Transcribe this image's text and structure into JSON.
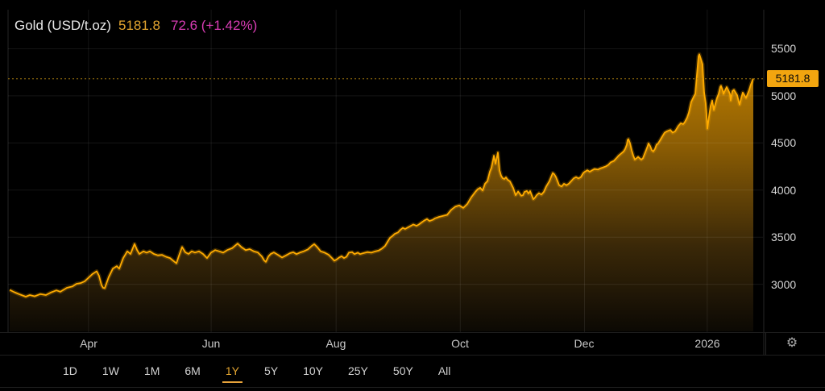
{
  "header": {
    "title": "Gold (USD/t.oz)",
    "price": "5181.8",
    "change": "72.6 (+1.42%)"
  },
  "settings_icon": "⚙",
  "range_selector": {
    "options": [
      "1D",
      "1W",
      "1M",
      "6M",
      "1Y",
      "5Y",
      "10Y",
      "25Y",
      "50Y",
      "All"
    ],
    "active": "1Y"
  },
  "colors": {
    "background": "#000000",
    "line": "#ffab00",
    "line_glow": "rgba(255,171,0,0.22)",
    "fill_top": "#c68400",
    "fill_mid": "#8a5c04",
    "fill_low": "#3a2808",
    "fill_bottom": "#0c0904",
    "grid": "rgba(255,255,255,0.08)",
    "border": "rgba(255,255,255,0.15)",
    "dotted_price_line": "#a87c10",
    "badge_bg": "#f2a50f",
    "badge_text": "#0a0a0a",
    "header_price": "#e3a530",
    "header_change": "#d83cb4",
    "axis_text": "#d6d6d6"
  },
  "chart_data": {
    "type": "area",
    "title": "Gold (USD/t.oz)",
    "current_price": 5181.8,
    "current_price_label": "5181.8",
    "change": 72.6,
    "change_percent": "+1.42%",
    "x_range": [
      "Feb 2025",
      "Feb 2026"
    ],
    "x_unit": "fraction of visible 1Y range",
    "ylim": [
      2500,
      5915
    ],
    "grid": true,
    "legend_position": "none",
    "x_ticks": [
      {
        "label": "Apr",
        "pos": 0.106
      },
      {
        "label": "Jun",
        "pos": 0.271
      },
      {
        "label": "Aug",
        "pos": 0.439
      },
      {
        "label": "Oct",
        "pos": 0.606
      },
      {
        "label": "Dec",
        "pos": 0.773
      },
      {
        "label": "2026",
        "pos": 0.938
      }
    ],
    "y_ticks": [
      5500,
      5000,
      4500,
      4000,
      3500,
      3000
    ],
    "points": [
      [
        0.0,
        2940
      ],
      [
        0.0065,
        2915
      ],
      [
        0.0141,
        2890
      ],
      [
        0.0217,
        2868
      ],
      [
        0.0271,
        2885
      ],
      [
        0.0336,
        2872
      ],
      [
        0.0412,
        2895
      ],
      [
        0.0487,
        2885
      ],
      [
        0.0552,
        2912
      ],
      [
        0.0628,
        2935
      ],
      [
        0.0682,
        2920
      ],
      [
        0.0769,
        2962
      ],
      [
        0.0845,
        2978
      ],
      [
        0.0899,
        3005
      ],
      [
        0.0953,
        3012
      ],
      [
        0.1007,
        3030
      ],
      [
        0.1062,
        3070
      ],
      [
        0.1116,
        3110
      ],
      [
        0.117,
        3138
      ],
      [
        0.1202,
        3090
      ],
      [
        0.1235,
        2990
      ],
      [
        0.1257,
        2962
      ],
      [
        0.1278,
        2958
      ],
      [
        0.1332,
        3075
      ],
      [
        0.1387,
        3165
      ],
      [
        0.1441,
        3192
      ],
      [
        0.1473,
        3165
      ],
      [
        0.1527,
        3277
      ],
      [
        0.1582,
        3350
      ],
      [
        0.1625,
        3322
      ],
      [
        0.1679,
        3428
      ],
      [
        0.1712,
        3365
      ],
      [
        0.1744,
        3322
      ],
      [
        0.1798,
        3350
      ],
      [
        0.1842,
        3335
      ],
      [
        0.1885,
        3350
      ],
      [
        0.1939,
        3322
      ],
      [
        0.1993,
        3307
      ],
      [
        0.2048,
        3312
      ],
      [
        0.2102,
        3292
      ],
      [
        0.2156,
        3278
      ],
      [
        0.2199,
        3250
      ],
      [
        0.2243,
        3222
      ],
      [
        0.2275,
        3300
      ],
      [
        0.2318,
        3395
      ],
      [
        0.2362,
        3340
      ],
      [
        0.2405,
        3322
      ],
      [
        0.2448,
        3350
      ],
      [
        0.2492,
        3336
      ],
      [
        0.2546,
        3350
      ],
      [
        0.26,
        3322
      ],
      [
        0.2654,
        3278
      ],
      [
        0.2708,
        3335
      ],
      [
        0.2763,
        3363
      ],
      [
        0.2817,
        3350
      ],
      [
        0.2871,
        3335
      ],
      [
        0.2925,
        3363
      ],
      [
        0.299,
        3382
      ],
      [
        0.3066,
        3432
      ],
      [
        0.312,
        3392
      ],
      [
        0.3174,
        3363
      ],
      [
        0.3228,
        3373
      ],
      [
        0.3283,
        3350
      ],
      [
        0.3337,
        3338
      ],
      [
        0.3391,
        3295
      ],
      [
        0.3424,
        3252
      ],
      [
        0.3445,
        3238
      ],
      [
        0.3479,
        3295
      ],
      [
        0.351,
        3322
      ],
      [
        0.3554,
        3338
      ],
      [
        0.3608,
        3312
      ],
      [
        0.3662,
        3284
      ],
      [
        0.3716,
        3306
      ],
      [
        0.377,
        3330
      ],
      [
        0.3814,
        3340
      ],
      [
        0.3857,
        3320
      ],
      [
        0.39,
        3335
      ],
      [
        0.3954,
        3350
      ],
      [
        0.4009,
        3370
      ],
      [
        0.4063,
        3407
      ],
      [
        0.4095,
        3426
      ],
      [
        0.4139,
        3392
      ],
      [
        0.4182,
        3350
      ],
      [
        0.4236,
        3335
      ],
      [
        0.429,
        3312
      ],
      [
        0.4334,
        3278
      ],
      [
        0.4366,
        3250
      ],
      [
        0.4399,
        3264
      ],
      [
        0.4431,
        3284
      ],
      [
        0.4464,
        3298
      ],
      [
        0.4496,
        3278
      ],
      [
        0.4529,
        3292
      ],
      [
        0.4561,
        3335
      ],
      [
        0.4605,
        3341
      ],
      [
        0.4637,
        3320
      ],
      [
        0.468,
        3335
      ],
      [
        0.4713,
        3320
      ],
      [
        0.4756,
        3330
      ],
      [
        0.481,
        3341
      ],
      [
        0.4864,
        3335
      ],
      [
        0.4919,
        3350
      ],
      [
        0.4962,
        3358
      ],
      [
        0.5005,
        3378
      ],
      [
        0.5049,
        3407
      ],
      [
        0.5081,
        3450
      ],
      [
        0.5114,
        3492
      ],
      [
        0.5146,
        3512
      ],
      [
        0.5179,
        3535
      ],
      [
        0.5222,
        3550
      ],
      [
        0.5255,
        3578
      ],
      [
        0.5287,
        3598
      ],
      [
        0.5319,
        3587
      ],
      [
        0.5363,
        3607
      ],
      [
        0.5395,
        3620
      ],
      [
        0.5428,
        3635
      ],
      [
        0.5471,
        3620
      ],
      [
        0.5504,
        3635
      ],
      [
        0.5536,
        3655
      ],
      [
        0.5579,
        3678
      ],
      [
        0.5612,
        3692
      ],
      [
        0.5645,
        3672
      ],
      [
        0.5688,
        3684
      ],
      [
        0.572,
        3700
      ],
      [
        0.5775,
        3715
      ],
      [
        0.5829,
        3726
      ],
      [
        0.5883,
        3737
      ],
      [
        0.5937,
        3790
      ],
      [
        0.5991,
        3823
      ],
      [
        0.6045,
        3838
      ],
      [
        0.61,
        3810
      ],
      [
        0.6154,
        3852
      ],
      [
        0.6208,
        3923
      ],
      [
        0.6262,
        3981
      ],
      [
        0.6295,
        4010
      ],
      [
        0.6327,
        4024
      ],
      [
        0.636,
        3995
      ],
      [
        0.6392,
        4067
      ],
      [
        0.6425,
        4095
      ],
      [
        0.6457,
        4195
      ],
      [
        0.6479,
        4238
      ],
      [
        0.6512,
        4365
      ],
      [
        0.6533,
        4280
      ],
      [
        0.6566,
        4398
      ],
      [
        0.6587,
        4210
      ],
      [
        0.6609,
        4152
      ],
      [
        0.6631,
        4125
      ],
      [
        0.6652,
        4118
      ],
      [
        0.6674,
        4135
      ],
      [
        0.6696,
        4110
      ],
      [
        0.6728,
        4092
      ],
      [
        0.6772,
        4020
      ],
      [
        0.6804,
        3946
      ],
      [
        0.6837,
        3985
      ],
      [
        0.688,
        3940
      ],
      [
        0.6902,
        3946
      ],
      [
        0.6923,
        3981
      ],
      [
        0.6956,
        3990
      ],
      [
        0.6977,
        3963
      ],
      [
        0.6999,
        3989
      ],
      [
        0.7021,
        3945
      ],
      [
        0.7042,
        3903
      ],
      [
        0.7064,
        3920
      ],
      [
        0.7086,
        3945
      ],
      [
        0.7118,
        3967
      ],
      [
        0.7151,
        3952
      ],
      [
        0.7183,
        3981
      ],
      [
        0.7216,
        4038
      ],
      [
        0.7237,
        4067
      ],
      [
        0.7259,
        4095
      ],
      [
        0.7281,
        4138
      ],
      [
        0.7303,
        4181
      ],
      [
        0.7324,
        4167
      ],
      [
        0.7346,
        4138
      ],
      [
        0.7367,
        4095
      ],
      [
        0.7389,
        4052
      ],
      [
        0.7422,
        4038
      ],
      [
        0.7454,
        4067
      ],
      [
        0.7487,
        4052
      ],
      [
        0.7519,
        4067
      ],
      [
        0.7552,
        4095
      ],
      [
        0.7584,
        4124
      ],
      [
        0.7617,
        4138
      ],
      [
        0.7649,
        4124
      ],
      [
        0.7682,
        4138
      ],
      [
        0.7714,
        4181
      ],
      [
        0.7736,
        4195
      ],
      [
        0.7768,
        4210
      ],
      [
        0.7801,
        4195
      ],
      [
        0.7833,
        4210
      ],
      [
        0.7866,
        4224
      ],
      [
        0.7909,
        4218
      ],
      [
        0.7942,
        4230
      ],
      [
        0.7974,
        4238
      ],
      [
        0.8018,
        4252
      ],
      [
        0.805,
        4267
      ],
      [
        0.8083,
        4295
      ],
      [
        0.8126,
        4310
      ],
      [
        0.8158,
        4338
      ],
      [
        0.8191,
        4367
      ],
      [
        0.8234,
        4395
      ],
      [
        0.8256,
        4410
      ],
      [
        0.8277,
        4438
      ],
      [
        0.8299,
        4481
      ],
      [
        0.831,
        4532
      ],
      [
        0.8321,
        4541
      ],
      [
        0.8343,
        4495
      ],
      [
        0.8364,
        4424
      ],
      [
        0.8386,
        4367
      ],
      [
        0.8407,
        4324
      ],
      [
        0.8429,
        4338
      ],
      [
        0.8451,
        4352
      ],
      [
        0.8472,
        4338
      ],
      [
        0.8494,
        4324
      ],
      [
        0.8516,
        4338
      ],
      [
        0.8537,
        4381
      ],
      [
        0.8559,
        4424
      ],
      [
        0.858,
        4467
      ],
      [
        0.8591,
        4495
      ],
      [
        0.8613,
        4467
      ],
      [
        0.8635,
        4424
      ],
      [
        0.8656,
        4410
      ],
      [
        0.8678,
        4438
      ],
      [
        0.8699,
        4481
      ],
      [
        0.8721,
        4495
      ],
      [
        0.8743,
        4524
      ],
      [
        0.8775,
        4567
      ],
      [
        0.8808,
        4610
      ],
      [
        0.884,
        4624
      ],
      [
        0.8884,
        4638
      ],
      [
        0.8916,
        4610
      ],
      [
        0.8949,
        4624
      ],
      [
        0.8992,
        4681
      ],
      [
        0.9025,
        4710
      ],
      [
        0.9057,
        4700
      ],
      [
        0.9079,
        4722
      ],
      [
        0.9111,
        4770
      ],
      [
        0.9133,
        4822
      ],
      [
        0.9165,
        4935
      ],
      [
        0.9198,
        4990
      ],
      [
        0.922,
        5022
      ],
      [
        0.9241,
        5210
      ],
      [
        0.9263,
        5420
      ],
      [
        0.9274,
        5442
      ],
      [
        0.9295,
        5393
      ],
      [
        0.9317,
        5335
      ],
      [
        0.9328,
        5178
      ],
      [
        0.9339,
        5035
      ],
      [
        0.936,
        4921
      ],
      [
        0.9371,
        4807
      ],
      [
        0.9382,
        4652
      ],
      [
        0.9404,
        4778
      ],
      [
        0.9426,
        4892
      ],
      [
        0.9447,
        4950
      ],
      [
        0.9469,
        4850
      ],
      [
        0.9491,
        4920
      ],
      [
        0.9512,
        4978
      ],
      [
        0.9534,
        5021
      ],
      [
        0.9556,
        5093
      ],
      [
        0.9566,
        5107
      ],
      [
        0.9588,
        5060
      ],
      [
        0.9599,
        5021
      ],
      [
        0.9621,
        5060
      ],
      [
        0.9642,
        5093
      ],
      [
        0.9664,
        5060
      ],
      [
        0.9686,
        5021
      ],
      [
        0.9696,
        4950
      ],
      [
        0.9718,
        5050
      ],
      [
        0.974,
        5064
      ],
      [
        0.9762,
        5035
      ],
      [
        0.9783,
        5007
      ],
      [
        0.9805,
        4935
      ],
      [
        0.9816,
        4907
      ],
      [
        0.9837,
        4978
      ],
      [
        0.9859,
        5035
      ],
      [
        0.9881,
        5007
      ],
      [
        0.9902,
        4978
      ],
      [
        0.9924,
        5021
      ],
      [
        0.9946,
        5064
      ],
      [
        0.9968,
        5121
      ],
      [
        0.9989,
        5164
      ],
      [
        1.0,
        5182
      ]
    ]
  }
}
